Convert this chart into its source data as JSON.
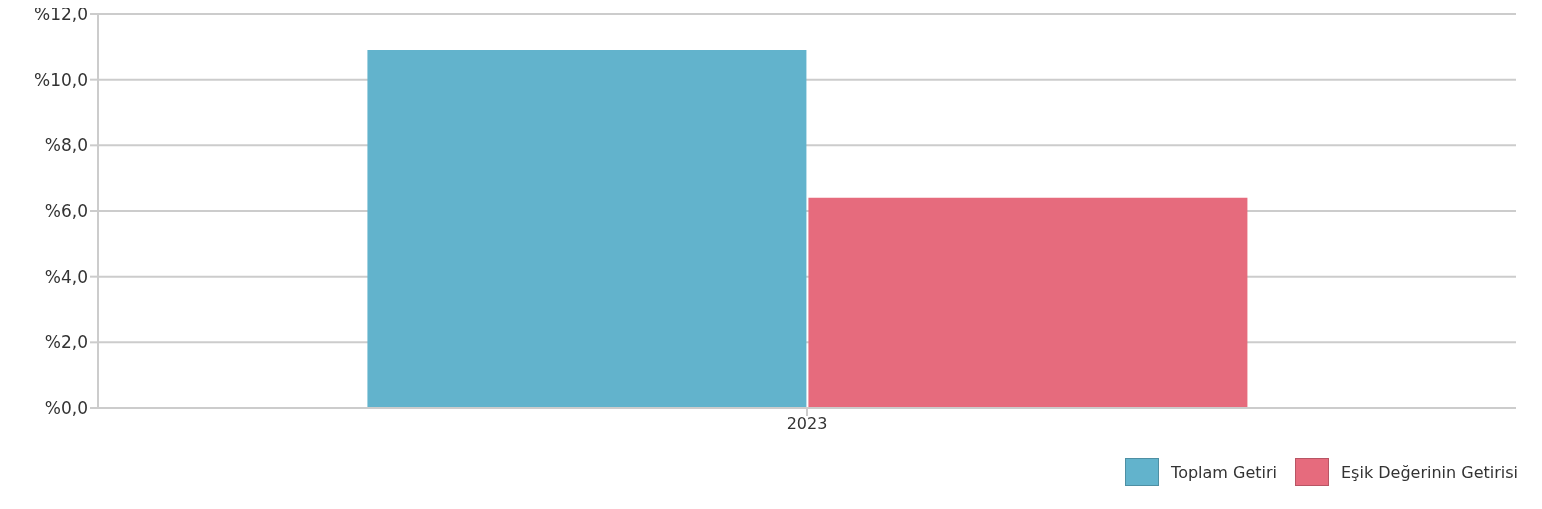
{
  "chart_data": {
    "type": "bar",
    "categories": [
      "2023"
    ],
    "series": [
      {
        "name": "Toplam Getiri",
        "color": "#62b3cc",
        "values": [
          10.9
        ]
      },
      {
        "name": "Eşik Değerinin Getirisi",
        "color": "#e66b7d",
        "values": [
          6.4
        ]
      }
    ],
    "ylim": [
      0,
      12
    ],
    "yticks": [
      {
        "value": 0,
        "label": "%0,0"
      },
      {
        "value": 2,
        "label": "%2,0"
      },
      {
        "value": 4,
        "label": "%4,0"
      },
      {
        "value": 6,
        "label": "%6,0"
      },
      {
        "value": 8,
        "label": "%8,0"
      },
      {
        "value": 10,
        "label": "%10,0"
      },
      {
        "value": 12,
        "label": "%12,0"
      }
    ],
    "grid": "y",
    "legend": "bottom right"
  }
}
